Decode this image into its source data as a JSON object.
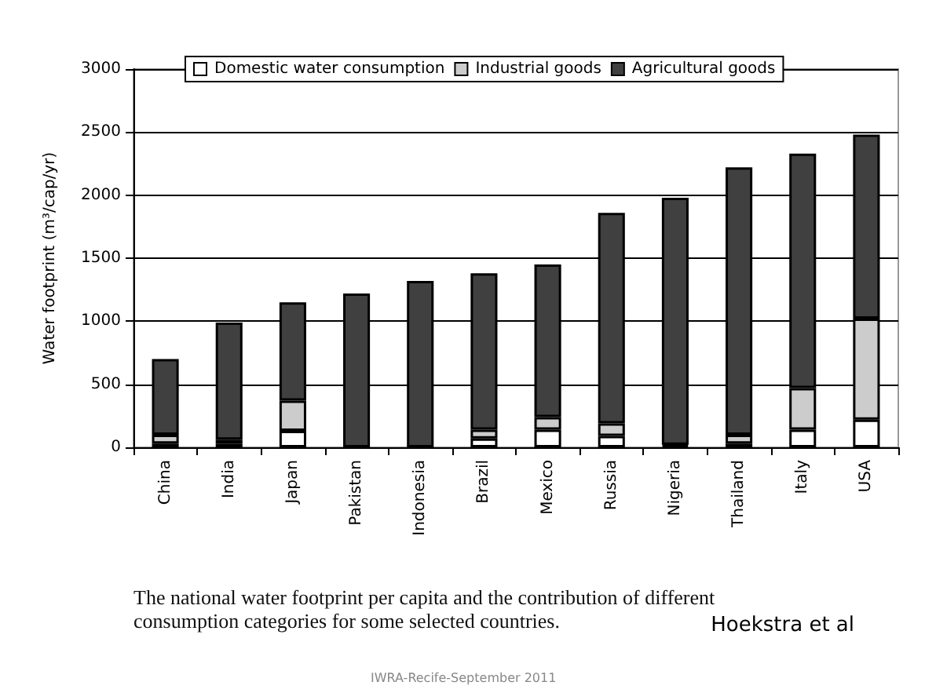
{
  "chart_data": {
    "type": "bar",
    "stacked": true,
    "ylabel": "Water footprint (m³/cap/yr)",
    "categories": [
      "China",
      "India",
      "Japan",
      "Pakistan",
      "Indonesia",
      "Brazil",
      "Mexico",
      "Russia",
      "Nigeria",
      "Thailand",
      "Italy",
      "USA"
    ],
    "series": [
      {
        "name": "Domestic water consumption",
        "color": "#ffffff",
        "values": [
          30,
          30,
          130,
          null,
          null,
          70,
          140,
          90,
          10,
          30,
          140,
          220
        ]
      },
      {
        "name": "Industrial goods",
        "color": "#cccccc",
        "values": [
          70,
          30,
          240,
          null,
          null,
          70,
          100,
          100,
          10,
          70,
          330,
          800
        ]
      },
      {
        "name": "Agricultural goods",
        "color": "#404040",
        "values": [
          600,
          930,
          780,
          1220,
          1320,
          1240,
          1210,
          1670,
          1960,
          2120,
          1860,
          1460
        ]
      }
    ],
    "ylim": [
      0,
      3000
    ],
    "yticks": [
      0,
      500,
      1000,
      1500,
      2000,
      2500,
      3000
    ],
    "grid": "y",
    "legend": "top",
    "annotations": [
      "The national water footprint per capita and the contribution of different consumption categories for some selected countries.",
      "Hoekstra et al",
      "IWRA-Recife-September 2011"
    ]
  }
}
